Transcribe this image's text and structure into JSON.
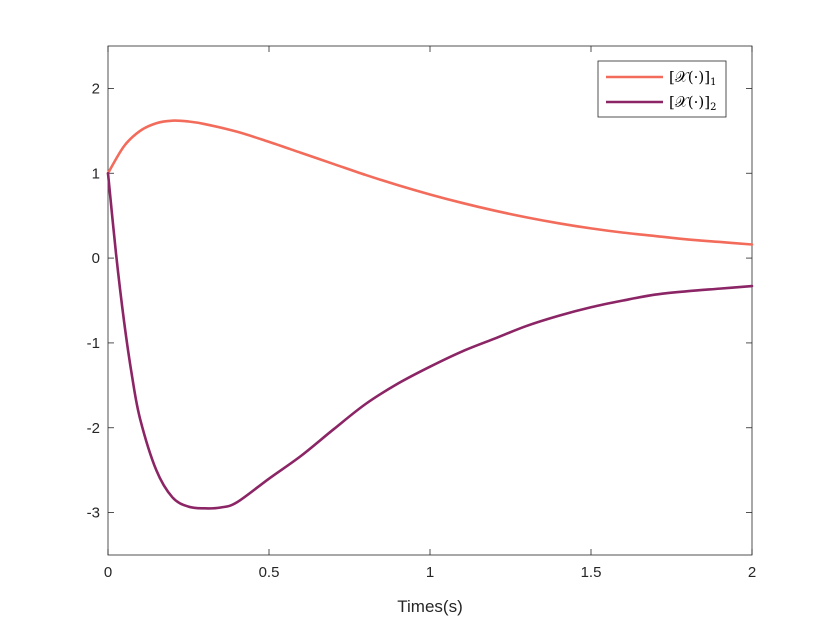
{
  "chart_data": {
    "type": "line",
    "xlabel": "Times(s)",
    "ylabel": "",
    "title": "",
    "xlim": [
      0,
      2
    ],
    "ylim": [
      -3.5,
      2.5
    ],
    "xticks": [
      0,
      0.5,
      1,
      1.5,
      2
    ],
    "xtick_labels": [
      "0",
      "0.5",
      "1",
      "1.5",
      "2"
    ],
    "yticks": [
      2,
      1,
      0,
      -1,
      -2,
      -3
    ],
    "ytick_labels": [
      "2",
      "1",
      "0",
      "-1",
      "-2",
      "-3"
    ],
    "grid": false,
    "legend_position": "top-right",
    "series": [
      {
        "name": "[𝒳(·)]",
        "subscript": "1",
        "color": "#f26b5b",
        "x": [
          0,
          0.05,
          0.1,
          0.15,
          0.2,
          0.25,
          0.3,
          0.4,
          0.5,
          0.6,
          0.7,
          0.8,
          0.9,
          1.0,
          1.1,
          1.2,
          1.3,
          1.4,
          1.5,
          1.6,
          1.7,
          1.8,
          1.9,
          2.0
        ],
        "values": [
          1.0,
          1.32,
          1.5,
          1.59,
          1.62,
          1.61,
          1.58,
          1.49,
          1.37,
          1.24,
          1.11,
          0.98,
          0.86,
          0.75,
          0.65,
          0.56,
          0.48,
          0.41,
          0.35,
          0.3,
          0.26,
          0.22,
          0.19,
          0.16
        ]
      },
      {
        "name": "[𝒳(·)]",
        "subscript": "2",
        "color": "#8b2565",
        "x": [
          0,
          0.025,
          0.05,
          0.075,
          0.1,
          0.15,
          0.2,
          0.25,
          0.3,
          0.35,
          0.4,
          0.5,
          0.6,
          0.7,
          0.8,
          0.9,
          1.0,
          1.1,
          1.2,
          1.3,
          1.4,
          1.5,
          1.6,
          1.7,
          1.8,
          1.9,
          2.0
        ],
        "values": [
          1.0,
          0.05,
          -0.75,
          -1.4,
          -1.9,
          -2.5,
          -2.82,
          -2.93,
          -2.95,
          -2.94,
          -2.88,
          -2.6,
          -2.33,
          -2.02,
          -1.72,
          -1.48,
          -1.28,
          -1.1,
          -0.95,
          -0.8,
          -0.68,
          -0.58,
          -0.5,
          -0.43,
          -0.39,
          -0.36,
          -0.33
        ]
      }
    ]
  }
}
